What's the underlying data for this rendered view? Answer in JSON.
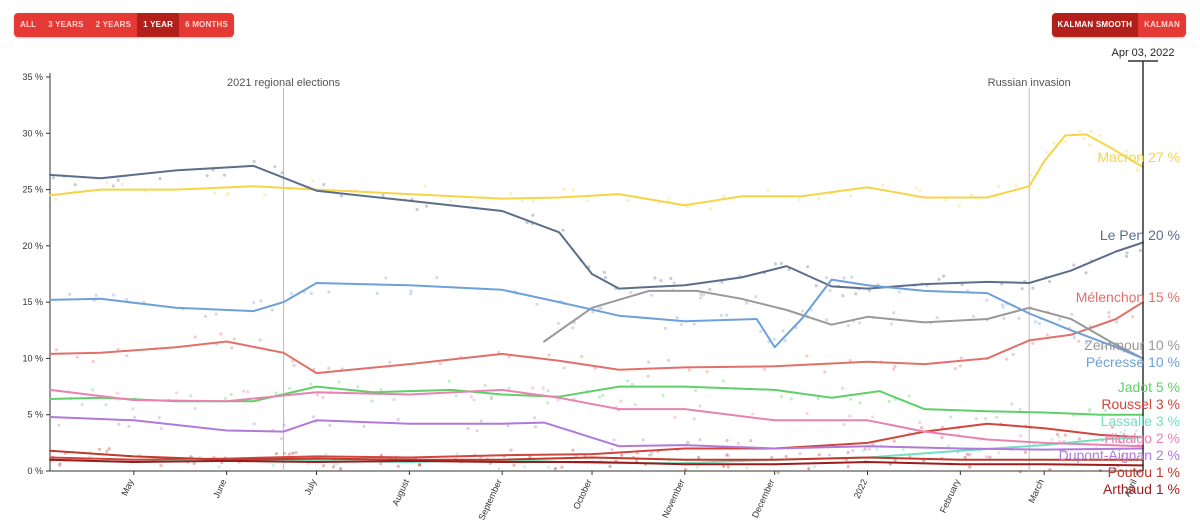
{
  "controls": {
    "range_buttons": [
      {
        "label": "All",
        "active": false
      },
      {
        "label": "3 Years",
        "active": false
      },
      {
        "label": "2 Years",
        "active": false
      },
      {
        "label": "1 Year",
        "active": true
      },
      {
        "label": "6 Months",
        "active": false
      }
    ],
    "smooth_buttons": [
      {
        "label": "Kalman Smooth",
        "active": true
      },
      {
        "label": "Kalman",
        "active": false
      }
    ]
  },
  "chart_data": {
    "type": "line",
    "x_range": [
      "2021-04-03",
      "2022-04-03"
    ],
    "ylim": [
      0,
      35
    ],
    "y_ticks": [
      "0 %",
      "5 %",
      "10 %",
      "15 %",
      "20 %",
      "25 %",
      "30 %",
      "35 %"
    ],
    "x_tick_labels": [
      {
        "label": "May",
        "date": "2021-05-01"
      },
      {
        "label": "June",
        "date": "2021-06-01"
      },
      {
        "label": "July",
        "date": "2021-07-01"
      },
      {
        "label": "August",
        "date": "2021-08-01"
      },
      {
        "label": "September",
        "date": "2021-09-01"
      },
      {
        "label": "October",
        "date": "2021-10-01"
      },
      {
        "label": "November",
        "date": "2021-11-01"
      },
      {
        "label": "December",
        "date": "2021-12-01"
      },
      {
        "label": "2022",
        "date": "2022-01-01"
      },
      {
        "label": "February",
        "date": "2022-02-01"
      },
      {
        "label": "March",
        "date": "2022-03-01"
      },
      {
        "label": "April",
        "date": "2022-04-01"
      }
    ],
    "annotations": [
      {
        "label": "2021 regional elections",
        "date": "2021-06-20"
      },
      {
        "label": "Russian invasion",
        "date": "2022-02-24"
      }
    ],
    "current_date_label": "Apr 03, 2022",
    "series": [
      {
        "name": "Macron",
        "value_label": "27 %",
        "color": "#f5d547",
        "x": [
          "2021-04-03",
          "2021-04-20",
          "2021-05-15",
          "2021-06-10",
          "2021-07-01",
          "2021-08-01",
          "2021-09-01",
          "2021-09-20",
          "2021-10-10",
          "2021-11-01",
          "2021-11-20",
          "2021-12-10",
          "2022-01-01",
          "2022-01-20",
          "2022-02-10",
          "2022-02-24",
          "2022-03-01",
          "2022-03-08",
          "2022-03-15",
          "2022-03-22",
          "2022-04-03"
        ],
        "y": [
          24.5,
          25.0,
          25.0,
          25.3,
          25.0,
          24.6,
          24.2,
          24.3,
          24.6,
          23.6,
          24.4,
          24.4,
          25.2,
          24.3,
          24.3,
          25.3,
          27.5,
          29.8,
          29.9,
          28.9,
          27.0
        ]
      },
      {
        "name": "Le Pen",
        "value_label": "20 %",
        "color": "#5b6e8c",
        "x": [
          "2021-04-03",
          "2021-04-20",
          "2021-05-15",
          "2021-06-10",
          "2021-07-01",
          "2021-08-01",
          "2021-09-01",
          "2021-09-20",
          "2021-10-01",
          "2021-10-10",
          "2021-11-01",
          "2021-11-20",
          "2021-12-05",
          "2021-12-20",
          "2022-01-01",
          "2022-01-20",
          "2022-02-10",
          "2022-02-24",
          "2022-03-10",
          "2022-03-25",
          "2022-04-03"
        ],
        "y": [
          26.3,
          26.0,
          26.7,
          27.1,
          24.9,
          24.0,
          23.1,
          21.2,
          17.5,
          16.2,
          16.5,
          17.2,
          18.2,
          16.4,
          16.2,
          16.6,
          16.8,
          16.7,
          17.8,
          19.5,
          20.3
        ]
      },
      {
        "name": "Mélenchon",
        "value_label": "15 %",
        "color": "#e0706a",
        "x": [
          "2021-04-03",
          "2021-04-20",
          "2021-05-15",
          "2021-06-01",
          "2021-06-20",
          "2021-07-01",
          "2021-08-01",
          "2021-09-01",
          "2021-09-20",
          "2021-10-10",
          "2021-11-01",
          "2021-12-01",
          "2022-01-01",
          "2022-01-20",
          "2022-02-10",
          "2022-02-24",
          "2022-03-10",
          "2022-03-25",
          "2022-04-03"
        ],
        "y": [
          10.4,
          10.5,
          11.0,
          11.5,
          10.5,
          8.7,
          9.5,
          10.4,
          9.8,
          9.0,
          9.2,
          9.3,
          9.7,
          9.5,
          10.0,
          11.6,
          12.1,
          13.5,
          15.0
        ]
      },
      {
        "name": "Zemmour",
        "value_label": "10 %",
        "color": "#999999",
        "x": [
          "2021-09-15",
          "2021-10-01",
          "2021-10-20",
          "2021-11-05",
          "2021-11-20",
          "2021-12-05",
          "2021-12-20",
          "2022-01-01",
          "2022-01-20",
          "2022-02-10",
          "2022-02-24",
          "2022-03-10",
          "2022-03-25",
          "2022-04-03"
        ],
        "y": [
          11.5,
          14.5,
          16.0,
          16.0,
          15.3,
          14.3,
          13.0,
          13.7,
          13.2,
          13.5,
          14.5,
          13.5,
          11.2,
          10.0
        ]
      },
      {
        "name": "Pécresse",
        "value_label": "10 %",
        "color": "#6fa0d8",
        "x": [
          "2021-04-03",
          "2021-04-20",
          "2021-05-15",
          "2021-06-10",
          "2021-06-20",
          "2021-07-01",
          "2021-08-01",
          "2021-09-01",
          "2021-09-20",
          "2021-10-10",
          "2021-11-01",
          "2021-11-25",
          "2021-12-01",
          "2021-12-10",
          "2021-12-20",
          "2022-01-01",
          "2022-01-20",
          "2022-02-10",
          "2022-02-24",
          "2022-03-10",
          "2022-03-25",
          "2022-04-03"
        ],
        "y": [
          15.2,
          15.3,
          14.5,
          14.2,
          15.0,
          16.7,
          16.5,
          16.1,
          15.0,
          13.8,
          13.3,
          13.5,
          11.0,
          13.5,
          17.0,
          16.5,
          16.0,
          15.8,
          14.0,
          12.5,
          11.0,
          10.0
        ]
      },
      {
        "name": "Jadot",
        "value_label": "5 %",
        "color": "#5fcf6a",
        "x": [
          "2021-04-03",
          "2021-04-20",
          "2021-05-15",
          "2021-06-10",
          "2021-07-01",
          "2021-07-20",
          "2021-08-15",
          "2021-09-01",
          "2021-09-20",
          "2021-10-10",
          "2021-11-01",
          "2021-12-01",
          "2021-12-20",
          "2022-01-05",
          "2022-01-20",
          "2022-02-10",
          "2022-03-01",
          "2022-03-20",
          "2022-04-03"
        ],
        "y": [
          6.4,
          6.5,
          6.2,
          6.2,
          7.5,
          7.0,
          7.2,
          6.8,
          6.6,
          7.5,
          7.5,
          7.2,
          6.5,
          7.1,
          5.5,
          5.3,
          5.2,
          5.0,
          5.0
        ]
      },
      {
        "name": "Roussel",
        "value_label": "3 %",
        "color": "#d0453e",
        "x": [
          "2021-04-03",
          "2021-05-01",
          "2021-06-01",
          "2021-07-01",
          "2021-08-01",
          "2021-09-01",
          "2021-10-01",
          "2021-11-01",
          "2021-12-01",
          "2022-01-01",
          "2022-01-20",
          "2022-02-10",
          "2022-03-01",
          "2022-03-20",
          "2022-04-03"
        ],
        "y": [
          1.2,
          1.0,
          1.1,
          1.3,
          1.2,
          1.4,
          1.5,
          2.0,
          2.0,
          2.5,
          3.5,
          4.2,
          3.8,
          3.2,
          3.0
        ]
      },
      {
        "name": "Lassalle",
        "value_label": "3 %",
        "color": "#6fe0c0",
        "x": [
          "2021-04-03",
          "2021-05-01",
          "2021-06-01",
          "2021-07-01",
          "2021-08-01",
          "2021-09-01",
          "2021-10-01",
          "2021-11-01",
          "2021-12-01",
          "2022-01-01",
          "2022-02-01",
          "2022-03-01",
          "2022-03-20",
          "2022-04-03"
        ],
        "y": [
          1.0,
          0.8,
          1.0,
          0.9,
          0.8,
          1.0,
          0.7,
          0.7,
          1.0,
          1.2,
          1.8,
          2.3,
          2.8,
          3.0
        ]
      },
      {
        "name": "Hidalgo",
        "value_label": "2 %",
        "color": "#e882b0",
        "x": [
          "2021-04-03",
          "2021-05-01",
          "2021-06-01",
          "2021-07-01",
          "2021-08-01",
          "2021-09-01",
          "2021-09-20",
          "2021-10-10",
          "2021-11-01",
          "2021-12-01",
          "2022-01-01",
          "2022-01-20",
          "2022-02-10",
          "2022-03-01",
          "2022-04-03"
        ],
        "y": [
          7.2,
          6.3,
          6.2,
          7.0,
          6.8,
          7.2,
          6.5,
          5.5,
          5.5,
          4.5,
          4.5,
          3.5,
          2.8,
          2.5,
          2.2
        ]
      },
      {
        "name": "Dupont-Aignan",
        "value_label": "2 %",
        "color": "#b07ad8",
        "x": [
          "2021-04-03",
          "2021-05-01",
          "2021-06-01",
          "2021-06-20",
          "2021-07-01",
          "2021-08-01",
          "2021-09-01",
          "2021-09-15",
          "2021-10-10",
          "2021-11-01",
          "2021-12-01",
          "2022-01-01",
          "2022-02-01",
          "2022-03-01",
          "2022-04-03"
        ],
        "y": [
          4.8,
          4.5,
          3.6,
          3.5,
          4.5,
          4.2,
          4.2,
          4.3,
          2.2,
          2.3,
          2.0,
          2.2,
          2.0,
          1.9,
          2.0
        ]
      },
      {
        "name": "Poutou",
        "value_label": "1 %",
        "color": "#c0392b",
        "x": [
          "2021-04-03",
          "2021-05-01",
          "2021-06-01",
          "2021-07-01",
          "2021-08-01",
          "2021-09-01",
          "2021-10-01",
          "2021-11-01",
          "2021-12-01",
          "2022-01-01",
          "2022-02-01",
          "2022-03-01",
          "2022-04-03"
        ],
        "y": [
          1.8,
          1.3,
          1.0,
          1.1,
          1.0,
          1.0,
          1.2,
          1.0,
          1.0,
          1.2,
          1.0,
          1.0,
          1.0
        ]
      },
      {
        "name": "Arthaud",
        "value_label": "1 %",
        "color": "#9c1c1c",
        "x": [
          "2021-04-03",
          "2021-05-01",
          "2021-06-01",
          "2021-07-01",
          "2021-08-01",
          "2021-09-01",
          "2021-10-01",
          "2021-11-01",
          "2021-12-01",
          "2022-01-01",
          "2022-02-01",
          "2022-03-01",
          "2022-04-03"
        ],
        "y": [
          1.0,
          0.8,
          0.9,
          0.8,
          0.9,
          0.8,
          0.8,
          0.6,
          0.6,
          0.8,
          0.6,
          0.6,
          0.5
        ]
      }
    ]
  }
}
